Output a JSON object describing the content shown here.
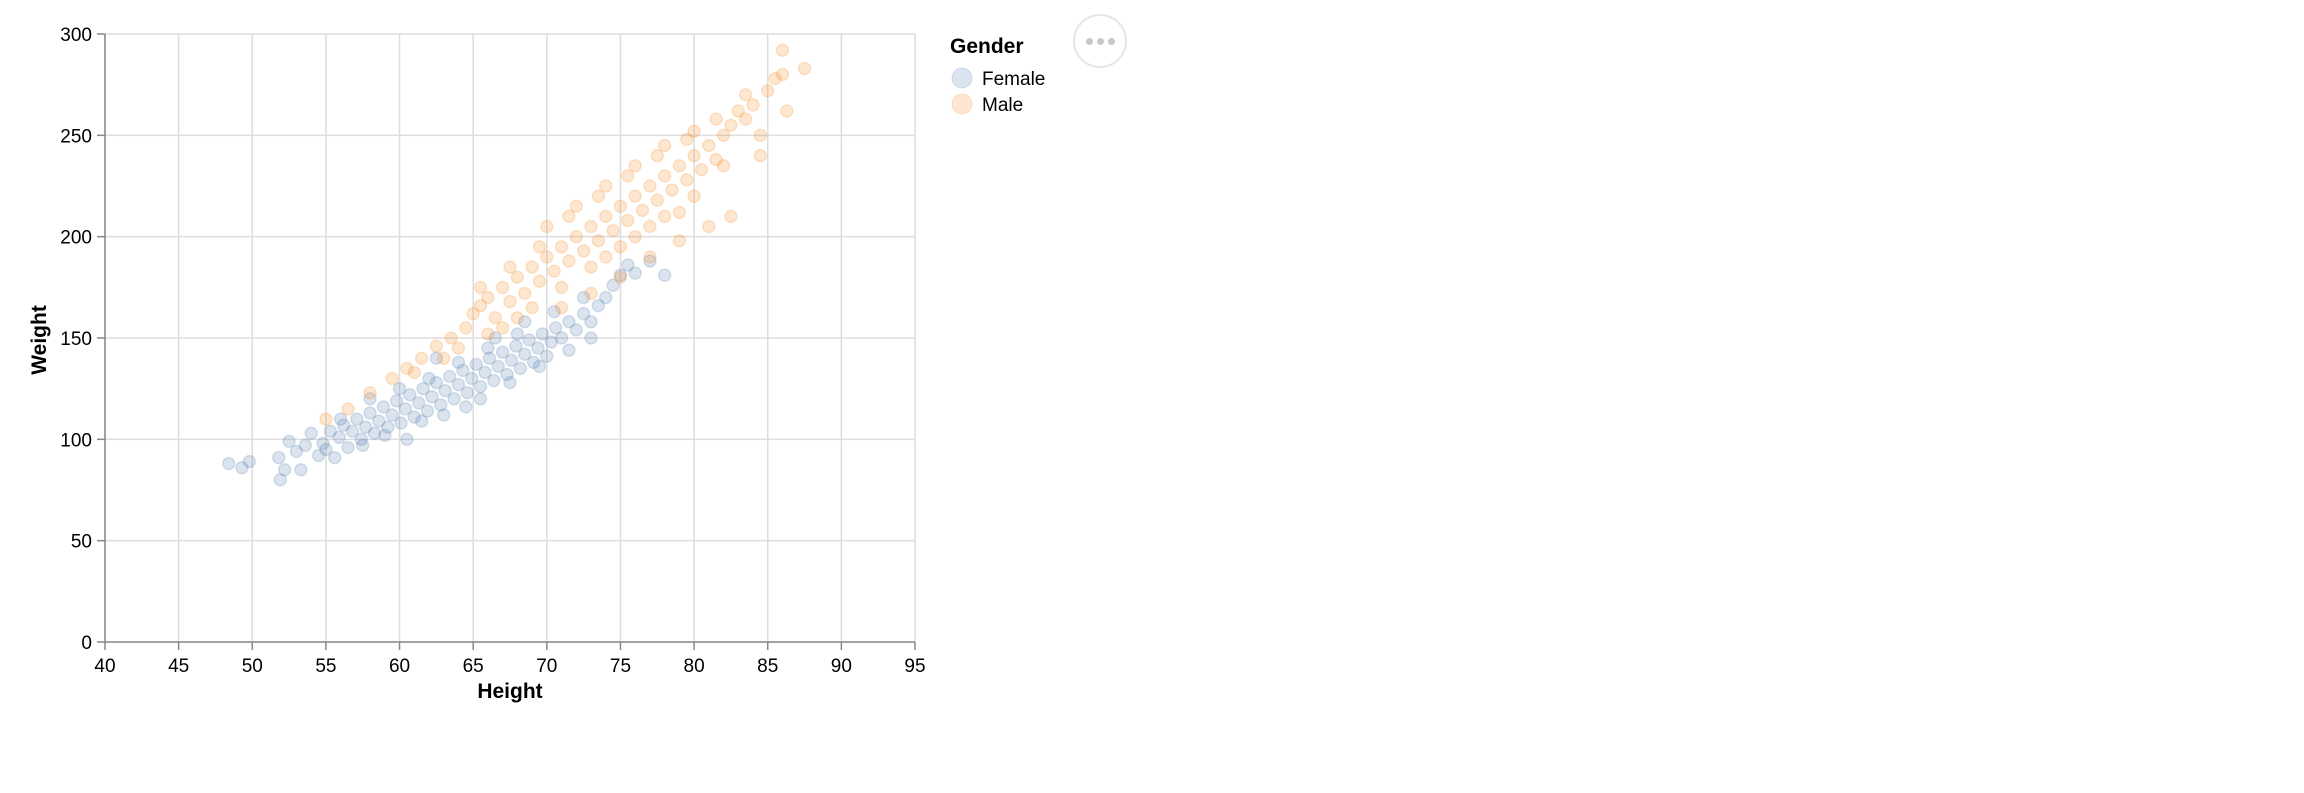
{
  "chart_data": {
    "type": "scatter",
    "title": "",
    "xlabel": "Height",
    "ylabel": "Weight",
    "xlim": [
      40,
      95
    ],
    "ylim": [
      0,
      300
    ],
    "x_ticks": [
      40,
      45,
      50,
      55,
      60,
      65,
      70,
      75,
      80,
      85,
      90,
      95
    ],
    "y_ticks": [
      0,
      50,
      100,
      150,
      200,
      250,
      300
    ],
    "x_tick_labels": [
      "40",
      "45",
      "50",
      "55",
      "60",
      "65",
      "70",
      "75",
      "80",
      "85",
      "90",
      "95"
    ],
    "y_tick_labels": [
      "0",
      "50",
      "100",
      "150",
      "200",
      "250",
      "300"
    ],
    "grid": true,
    "legend": {
      "title": "Gender",
      "placement": "right",
      "entries": [
        "Female",
        "Male"
      ]
    },
    "colors": {
      "Female": "#4c78a8",
      "Male": "#f58518",
      "grid": "#dddddd",
      "axis": "#888888"
    },
    "point_opacity": 0.2,
    "series": [
      {
        "name": "Female",
        "points": [
          [
            48.4,
            88
          ],
          [
            49.3,
            86
          ],
          [
            49.8,
            89
          ],
          [
            51.8,
            91
          ],
          [
            51.9,
            80
          ],
          [
            52.2,
            85
          ],
          [
            52.5,
            99
          ],
          [
            53.0,
            94
          ],
          [
            53.3,
            85
          ],
          [
            53.6,
            97
          ],
          [
            54.0,
            103
          ],
          [
            54.5,
            92
          ],
          [
            54.8,
            98
          ],
          [
            55.0,
            95
          ],
          [
            55.3,
            104
          ],
          [
            55.6,
            91
          ],
          [
            55.9,
            101
          ],
          [
            56.2,
            107
          ],
          [
            56.5,
            96
          ],
          [
            56.8,
            104
          ],
          [
            57.1,
            110
          ],
          [
            57.4,
            100
          ],
          [
            57.7,
            106
          ],
          [
            58.0,
            113
          ],
          [
            58.3,
            103
          ],
          [
            58.6,
            109
          ],
          [
            58.9,
            116
          ],
          [
            59.2,
            106
          ],
          [
            59.5,
            112
          ],
          [
            59.8,
            119
          ],
          [
            60.1,
            108
          ],
          [
            60.4,
            115
          ],
          [
            60.7,
            122
          ],
          [
            61.0,
            111
          ],
          [
            61.3,
            118
          ],
          [
            61.6,
            125
          ],
          [
            61.9,
            114
          ],
          [
            62.2,
            121
          ],
          [
            62.5,
            128
          ],
          [
            62.8,
            117
          ],
          [
            63.1,
            124
          ],
          [
            63.4,
            131
          ],
          [
            63.7,
            120
          ],
          [
            64.0,
            127
          ],
          [
            64.3,
            134
          ],
          [
            64.6,
            123
          ],
          [
            64.9,
            130
          ],
          [
            65.2,
            137
          ],
          [
            65.5,
            126
          ],
          [
            65.8,
            133
          ],
          [
            66.1,
            140
          ],
          [
            66.4,
            129
          ],
          [
            66.7,
            136
          ],
          [
            67.0,
            143
          ],
          [
            67.3,
            132
          ],
          [
            67.6,
            139
          ],
          [
            67.9,
            146
          ],
          [
            68.2,
            135
          ],
          [
            68.5,
            142
          ],
          [
            68.8,
            149
          ],
          [
            69.1,
            138
          ],
          [
            69.4,
            145
          ],
          [
            69.7,
            152
          ],
          [
            70.0,
            141
          ],
          [
            70.3,
            148
          ],
          [
            70.6,
            155
          ],
          [
            71.0,
            150
          ],
          [
            71.5,
            158
          ],
          [
            72.0,
            154
          ],
          [
            72.5,
            162
          ],
          [
            73.0,
            158
          ],
          [
            73.5,
            166
          ],
          [
            74.0,
            170
          ],
          [
            74.5,
            176
          ],
          [
            75.0,
            181
          ],
          [
            75.5,
            186
          ],
          [
            76.0,
            182
          ],
          [
            77.0,
            188
          ],
          [
            78.0,
            181
          ],
          [
            60.0,
            125
          ],
          [
            62.0,
            130
          ],
          [
            64.0,
            138
          ],
          [
            66.0,
            145
          ],
          [
            68.0,
            152
          ],
          [
            58.0,
            120
          ],
          [
            56.0,
            110
          ],
          [
            60.5,
            100
          ],
          [
            63.0,
            112
          ],
          [
            65.5,
            120
          ],
          [
            67.5,
            128
          ],
          [
            69.5,
            136
          ],
          [
            71.5,
            144
          ],
          [
            57.5,
            97
          ],
          [
            59.0,
            102
          ],
          [
            61.5,
            109
          ],
          [
            64.5,
            116
          ],
          [
            62.5,
            140
          ],
          [
            66.5,
            150
          ],
          [
            68.5,
            158
          ],
          [
            70.5,
            163
          ],
          [
            72.5,
            170
          ],
          [
            73.0,
            150
          ]
        ]
      },
      {
        "name": "Male",
        "points": [
          [
            55.0,
            110
          ],
          [
            56.5,
            115
          ],
          [
            58.0,
            123
          ],
          [
            59.5,
            130
          ],
          [
            60.5,
            135
          ],
          [
            61.5,
            140
          ],
          [
            62.5,
            146
          ],
          [
            63.5,
            150
          ],
          [
            64.5,
            155
          ],
          [
            65.0,
            162
          ],
          [
            65.5,
            166
          ],
          [
            66.0,
            170
          ],
          [
            66.5,
            160
          ],
          [
            67.0,
            175
          ],
          [
            67.5,
            168
          ],
          [
            68.0,
            180
          ],
          [
            68.5,
            172
          ],
          [
            69.0,
            185
          ],
          [
            69.5,
            178
          ],
          [
            70.0,
            190
          ],
          [
            70.5,
            183
          ],
          [
            71.0,
            195
          ],
          [
            71.5,
            188
          ],
          [
            72.0,
            200
          ],
          [
            72.5,
            193
          ],
          [
            73.0,
            205
          ],
          [
            73.5,
            198
          ],
          [
            74.0,
            210
          ],
          [
            74.5,
            203
          ],
          [
            75.0,
            215
          ],
          [
            75.5,
            208
          ],
          [
            76.0,
            220
          ],
          [
            76.5,
            213
          ],
          [
            77.0,
            225
          ],
          [
            77.5,
            218
          ],
          [
            78.0,
            230
          ],
          [
            78.5,
            223
          ],
          [
            79.0,
            235
          ],
          [
            79.5,
            228
          ],
          [
            80.0,
            240
          ],
          [
            80.5,
            233
          ],
          [
            81.0,
            245
          ],
          [
            81.5,
            238
          ],
          [
            82.0,
            250
          ],
          [
            82.5,
            255
          ],
          [
            83.0,
            262
          ],
          [
            83.5,
            258
          ],
          [
            84.0,
            265
          ],
          [
            84.5,
            250
          ],
          [
            85.0,
            272
          ],
          [
            85.5,
            278
          ],
          [
            86.0,
            292
          ],
          [
            86.3,
            262
          ],
          [
            86.0,
            280
          ],
          [
            87.5,
            283
          ],
          [
            69.0,
            165
          ],
          [
            71.0,
            175
          ],
          [
            73.0,
            185
          ],
          [
            75.0,
            195
          ],
          [
            77.0,
            205
          ],
          [
            79.0,
            212
          ],
          [
            70.0,
            205
          ],
          [
            72.0,
            215
          ],
          [
            74.0,
            225
          ],
          [
            76.0,
            235
          ],
          [
            78.0,
            245
          ],
          [
            80.0,
            252
          ],
          [
            67.0,
            155
          ],
          [
            68.0,
            160
          ],
          [
            64.0,
            145
          ],
          [
            66.0,
            152
          ],
          [
            63.0,
            140
          ],
          [
            61.0,
            133
          ],
          [
            74.0,
            190
          ],
          [
            76.0,
            200
          ],
          [
            78.0,
            210
          ],
          [
            80.0,
            220
          ],
          [
            82.0,
            235
          ],
          [
            65.5,
            175
          ],
          [
            67.5,
            185
          ],
          [
            69.5,
            195
          ],
          [
            71.5,
            210
          ],
          [
            73.5,
            220
          ],
          [
            75.5,
            230
          ],
          [
            77.5,
            240
          ],
          [
            79.5,
            248
          ],
          [
            81.5,
            258
          ],
          [
            83.5,
            270
          ],
          [
            84.5,
            240
          ],
          [
            82.5,
            210
          ],
          [
            81.0,
            205
          ],
          [
            79.0,
            198
          ],
          [
            77.0,
            190
          ],
          [
            75.0,
            180
          ],
          [
            73.0,
            172
          ],
          [
            71.0,
            165
          ]
        ]
      }
    ]
  }
}
